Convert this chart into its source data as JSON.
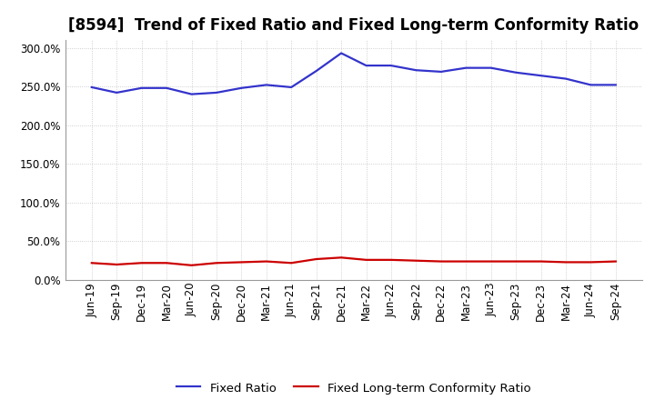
{
  "title": "[8594]  Trend of Fixed Ratio and Fixed Long-term Conformity Ratio",
  "labels": [
    "Jun-19",
    "Sep-19",
    "Dec-19",
    "Mar-20",
    "Jun-20",
    "Sep-20",
    "Dec-20",
    "Mar-21",
    "Jun-21",
    "Sep-21",
    "Dec-21",
    "Mar-22",
    "Jun-22",
    "Sep-22",
    "Dec-22",
    "Mar-23",
    "Jun-23",
    "Sep-23",
    "Dec-23",
    "Mar-24",
    "Jun-24",
    "Sep-24"
  ],
  "fixed_ratio": [
    249,
    242,
    248,
    248,
    240,
    242,
    248,
    252,
    249,
    270,
    293,
    277,
    277,
    271,
    269,
    274,
    274,
    268,
    264,
    260,
    252,
    252
  ],
  "fixed_lt_ratio": [
    22,
    20,
    22,
    22,
    19,
    22,
    23,
    24,
    22,
    27,
    29,
    26,
    26,
    25,
    24,
    24,
    24,
    24,
    24,
    23,
    23,
    24
  ],
  "fixed_ratio_color": "#3333cc",
  "fixed_lt_ratio_color": "#cc0000",
  "ylim": [
    0,
    310
  ],
  "yticks": [
    0,
    50,
    100,
    150,
    200,
    250,
    300
  ],
  "background_color": "#ffffff",
  "plot_bg_color": "#f8f8f8",
  "grid_color": "#bbbbbb",
  "legend_fixed_ratio": "Fixed Ratio",
  "legend_fixed_lt_ratio": "Fixed Long-term Conformity Ratio",
  "title_fontsize": 12,
  "tick_fontsize": 8.5,
  "legend_fontsize": 9.5
}
